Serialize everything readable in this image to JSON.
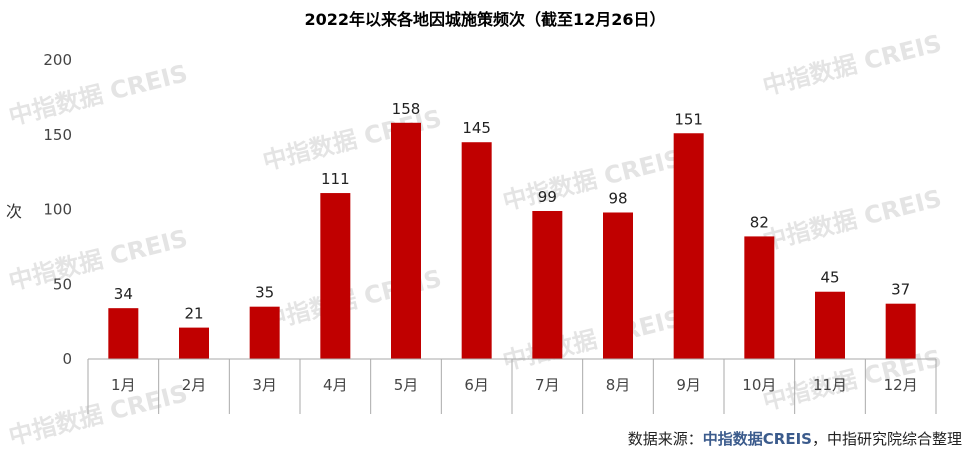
{
  "title": "2022年以来各地因城施策频次（截至12月26日）",
  "watermark_text": "中指数据 CREIS",
  "footer": {
    "prefix": "数据来源：",
    "brand": "中指数据CREIS",
    "suffix": "，中指研究院综合整理"
  },
  "colors": {
    "bar": "#c00000",
    "axis": "#aaaaaa"
  },
  "chart_data": {
    "type": "bar",
    "title": "2022年以来各地因城施策频次（截至12月26日）",
    "xlabel": "",
    "ylabel": "次",
    "categories": [
      "1月",
      "2月",
      "3月",
      "4月",
      "5月",
      "6月",
      "7月",
      "8月",
      "9月",
      "10月",
      "11月",
      "12月"
    ],
    "values": [
      34,
      21,
      35,
      111,
      158,
      145,
      99,
      98,
      151,
      82,
      45,
      37
    ],
    "ylim": [
      0,
      200
    ],
    "yticks": [
      0,
      50,
      100,
      150,
      200
    ],
    "grid": false,
    "data_labels": true,
    "legend": "none"
  }
}
